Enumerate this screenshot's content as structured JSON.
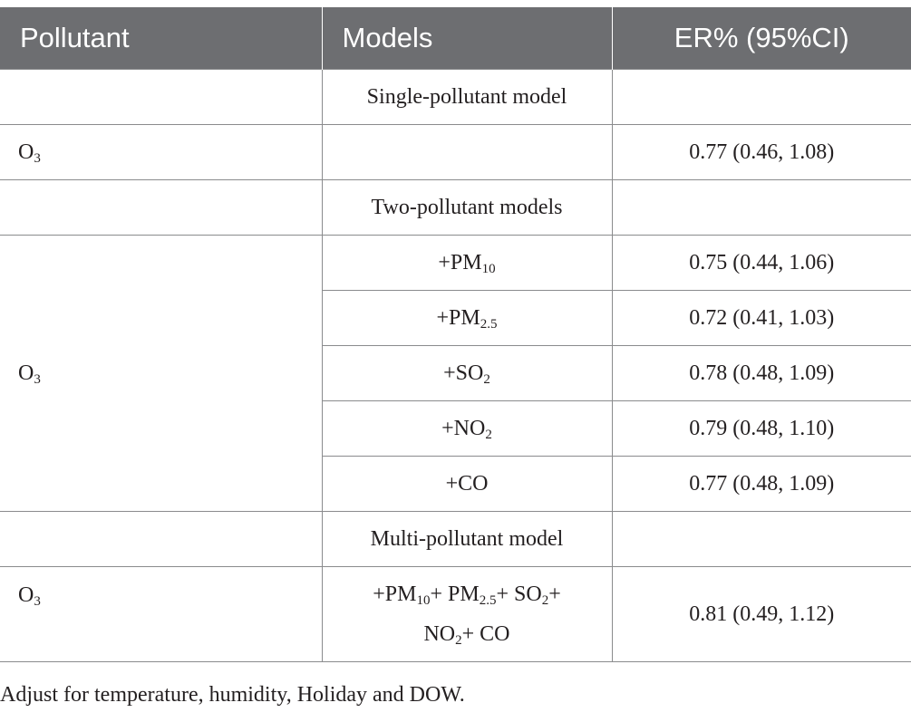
{
  "headers": {
    "pollutant": "Pollutant",
    "models": "Models",
    "er": "ER% (95%CI)"
  },
  "rows": {
    "single_label": "Single-pollutant model",
    "single_pollutant": "O",
    "single_pollutant_sub": "3",
    "single_er": "0.77 (0.46, 1.08)",
    "two_label": "Two-pollutant models",
    "two_pollutant": "O",
    "two_pollutant_sub": "3",
    "two_models": [
      {
        "prefix": "+PM",
        "sub": "10",
        "suffix": "",
        "er": "0.75 (0.44, 1.06)"
      },
      {
        "prefix": "+PM",
        "sub": "2.5",
        "suffix": "",
        "er": "0.72 (0.41, 1.03)"
      },
      {
        "prefix": "+SO",
        "sub": "2",
        "suffix": "",
        "er": "0.78 (0.48, 1.09)"
      },
      {
        "prefix": "+NO",
        "sub": "2",
        "suffix": "",
        "er": "0.79 (0.48, 1.10)"
      },
      {
        "prefix": "+CO",
        "sub": "",
        "suffix": "",
        "er": "0.77 (0.48, 1.09)"
      }
    ],
    "multi_label": "Multi-pollutant model",
    "multi_pollutant": "O",
    "multi_pollutant_sub": "3",
    "multi_model_parts": [
      "+PM",
      "10",
      "+ PM",
      "2.5",
      "+ SO",
      "2",
      "+",
      "NO",
      "2",
      "+ CO"
    ],
    "multi_er": "0.81 (0.49, 1.12)"
  },
  "footnote": "Adjust for temperature, humidity, Holiday and DOW."
}
